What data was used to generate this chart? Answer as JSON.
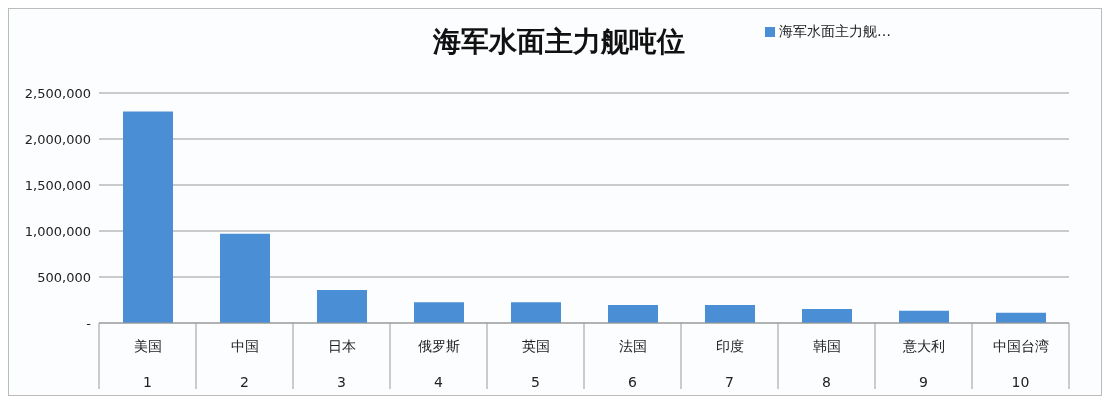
{
  "chart_data": {
    "type": "bar",
    "title": "海军水面主力舰吨位",
    "categories": [
      "美国\n1",
      "中国\n2",
      "日本\n3",
      "俄罗斯\n4",
      "英国\n5",
      "法国\n6",
      "印度\n7",
      "韩国\n8",
      "意大利\n9",
      "中国台湾\n10"
    ],
    "series": [
      {
        "name": "海军水面主力舰…",
        "color": "#4a8fd6",
        "values": [
          2300000,
          970000,
          360000,
          225000,
          225000,
          195000,
          195000,
          153000,
          133000,
          112000
        ]
      }
    ],
    "ylim": [
      0,
      2500000
    ],
    "yticks": [
      {
        "value": 0,
        "label": "-"
      },
      {
        "value": 500000,
        "label": "500,000"
      },
      {
        "value": 1000000,
        "label": "1,000,000"
      },
      {
        "value": 1500000,
        "label": "1,500,000"
      },
      {
        "value": 2000000,
        "label": "2,000,000"
      },
      {
        "value": 2500000,
        "label": "2,500,000"
      }
    ],
    "grid": "y",
    "legend": "top right"
  }
}
